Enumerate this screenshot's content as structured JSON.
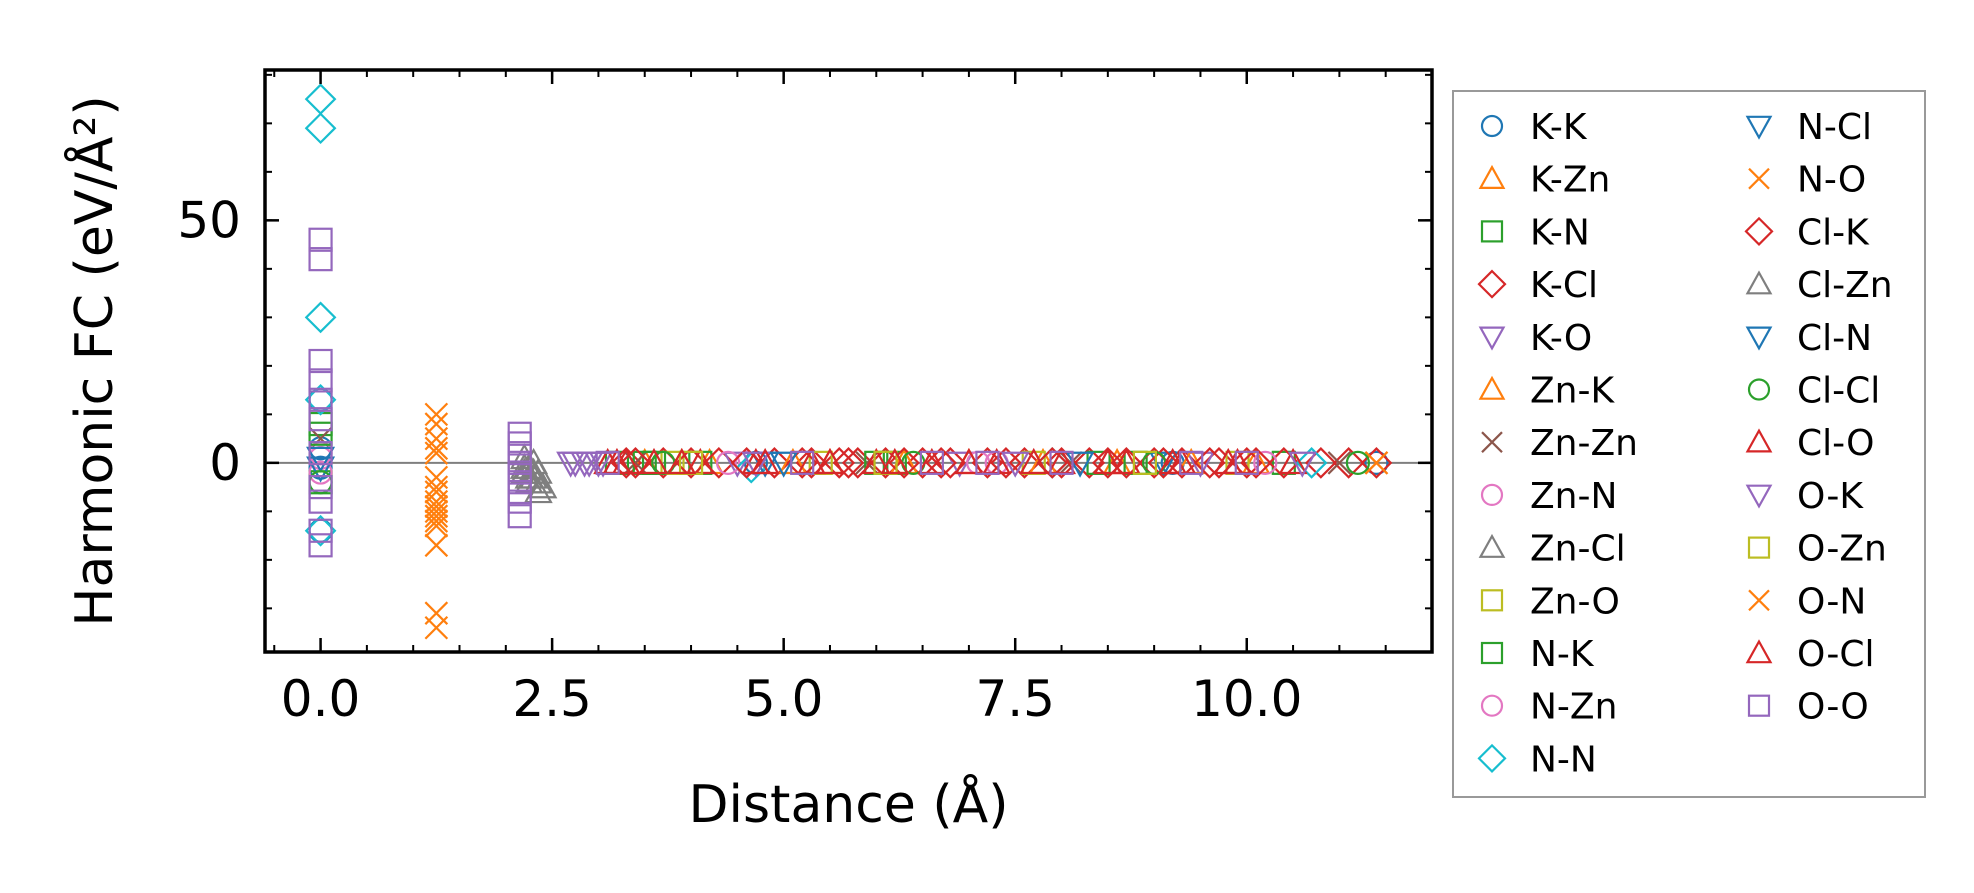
{
  "chart_data": {
    "type": "scatter",
    "title": "",
    "xlabel": "Distance (Å)",
    "ylabel": "Harmonic FC (eV/Å²)",
    "xlim": [
      -0.6,
      12.0
    ],
    "ylim": [
      -39,
      81
    ],
    "xticks": [
      {
        "value": 0.0,
        "label": "0.0"
      },
      {
        "value": 2.5,
        "label": "2.5"
      },
      {
        "value": 5.0,
        "label": "5.0"
      },
      {
        "value": 7.5,
        "label": "7.5"
      },
      {
        "value": 10.0,
        "label": "10.0"
      }
    ],
    "yticks": [
      {
        "value": 0,
        "label": "0"
      },
      {
        "value": 50,
        "label": "50"
      }
    ],
    "zero_line": true,
    "grid": false,
    "legend_position": "outside-right",
    "series": [
      {
        "name": "K-K",
        "marker": "circle",
        "color": "#1f77b4",
        "x": [
          0,
          0,
          0,
          0,
          4.7,
          9.2,
          11.4
        ],
        "y": [
          13,
          3,
          -1,
          -14,
          0,
          0,
          0
        ]
      },
      {
        "name": "K-Zn",
        "marker": "triangle-up",
        "color": "#ff7f0e",
        "x": [
          3.5,
          4.2,
          5.5,
          7.0,
          8.6,
          10.1
        ],
        "y": [
          0,
          0,
          0,
          0,
          0,
          0
        ]
      },
      {
        "name": "K-N",
        "marker": "square",
        "color": "#2ca02c",
        "x": [
          0,
          0,
          3.2,
          3.6,
          4.1,
          6.2,
          8.8,
          10.4
        ],
        "y": [
          8,
          -4,
          0,
          0,
          0,
          0,
          0,
          0
        ]
      },
      {
        "name": "K-Cl",
        "marker": "diamond",
        "color": "#d62728",
        "x": [
          3.3,
          3.7,
          4.3,
          4.9,
          5.3,
          5.6,
          5.8,
          6.1,
          6.5,
          6.8,
          7.2,
          7.6,
          8.0,
          8.3,
          8.7,
          9.0,
          9.3,
          9.7,
          10.0,
          10.4,
          10.8,
          11.1,
          11.4
        ],
        "y": [
          0,
          0,
          0,
          0,
          0,
          0,
          0,
          0,
          0,
          0,
          0,
          0,
          0,
          0,
          0,
          0,
          0,
          0,
          0,
          0,
          0,
          0,
          0
        ]
      },
      {
        "name": "K-O",
        "marker": "triangle-down",
        "color": "#9467bd",
        "x": [
          2.7,
          2.85,
          3.0,
          4.5,
          6.9,
          9.5
        ],
        "y": [
          0,
          0,
          0,
          0,
          0,
          0
        ]
      },
      {
        "name": "Zn-K",
        "marker": "triangle-up",
        "color": "#ff7f0e",
        "x": [
          3.9,
          5.1,
          6.3,
          7.8,
          9.4
        ],
        "y": [
          0,
          0,
          0,
          0,
          0
        ]
      },
      {
        "name": "Zn-Zn",
        "marker": "x",
        "color": "#8c564b",
        "x": [
          0,
          3.4,
          5.9,
          8.1,
          11.0
        ],
        "y": [
          5,
          0,
          0,
          0,
          0
        ]
      },
      {
        "name": "Zn-N",
        "marker": "circle",
        "color": "#e377c2",
        "x": [
          0,
          0,
          4.4,
          7.3,
          10.2
        ],
        "y": [
          2,
          -2,
          0,
          0,
          0
        ]
      },
      {
        "name": "Zn-Cl",
        "marker": "triangle-up",
        "color": "#7f7f7f",
        "x": [
          2.2,
          2.2,
          2.25,
          2.25,
          2.3,
          2.3,
          2.35,
          2.35,
          2.4
        ],
        "y": [
          -2,
          1,
          -4,
          -1,
          -3,
          0,
          -6,
          -2,
          -5
        ]
      },
      {
        "name": "Zn-O",
        "marker": "square",
        "color": "#bcbd22",
        "x": [
          3.8,
          5.4,
          7.7,
          9.9
        ],
        "y": [
          0,
          0,
          0,
          0
        ]
      },
      {
        "name": "N-K",
        "marker": "square",
        "color": "#2ca02c",
        "x": [
          0,
          3.5,
          6.0,
          8.4
        ],
        "y": [
          6,
          0,
          0,
          0
        ]
      },
      {
        "name": "N-Zn",
        "marker": "circle",
        "color": "#e377c2",
        "x": [
          0,
          4.6,
          7.1
        ],
        "y": [
          1,
          0,
          0
        ]
      },
      {
        "name": "N-N",
        "marker": "diamond",
        "color": "#17becf",
        "x": [
          0,
          0,
          0,
          0,
          0,
          4.65,
          7.9,
          10.7
        ],
        "y": [
          75,
          69,
          30,
          13,
          -14,
          -1,
          0,
          0
        ]
      },
      {
        "name": "N-Cl",
        "marker": "triangle-down",
        "color": "#1f77b4",
        "x": [
          0,
          4.8,
          9.1
        ],
        "y": [
          -1,
          0,
          0
        ]
      },
      {
        "name": "N-O",
        "marker": "x",
        "color": "#ff7f0e",
        "x": [
          1.25,
          1.25,
          1.25,
          1.25,
          1.25,
          1.25,
          1.25,
          1.25,
          1.25,
          1.25,
          1.25,
          1.25,
          1.25,
          1.25,
          11.4
        ],
        "y": [
          10,
          8,
          5,
          3,
          -3,
          -5,
          -8,
          -9,
          -10,
          -11,
          -13,
          -17,
          -31,
          -34,
          0
        ]
      },
      {
        "name": "Cl-K",
        "marker": "diamond",
        "color": "#d62728",
        "x": [
          3.4,
          4.0,
          4.6,
          5.2,
          5.7,
          6.3,
          6.7,
          7.4,
          7.9,
          8.5,
          9.1,
          9.6,
          10.1
        ],
        "y": [
          0,
          0,
          0,
          0,
          0,
          0,
          0,
          0,
          0,
          0,
          0,
          0,
          0
        ]
      },
      {
        "name": "Cl-Zn",
        "marker": "triangle-up",
        "color": "#7f7f7f",
        "x": [
          2.2,
          2.25,
          2.3,
          2.35
        ],
        "y": [
          -1,
          -3,
          -2,
          -4
        ]
      },
      {
        "name": "Cl-N",
        "marker": "triangle-down",
        "color": "#1f77b4",
        "x": [
          0,
          5.0,
          8.2
        ],
        "y": [
          1,
          0,
          0
        ]
      },
      {
        "name": "Cl-Cl",
        "marker": "circle",
        "color": "#2ca02c",
        "x": [
          0,
          3.7,
          6.4,
          9.0,
          11.2
        ],
        "y": [
          -4,
          0,
          0,
          0,
          0
        ]
      },
      {
        "name": "Cl-O",
        "marker": "triangle-up",
        "color": "#d62728",
        "x": [
          3.1,
          3.3,
          3.6,
          4.1,
          4.7,
          5.3,
          6.0,
          6.6,
          7.3,
          8.0,
          8.7,
          9.3,
          9.9,
          10.5
        ],
        "y": [
          0,
          0,
          0,
          0,
          0,
          0,
          0,
          0,
          0,
          0,
          0,
          0,
          0,
          0
        ]
      },
      {
        "name": "O-K",
        "marker": "triangle-down",
        "color": "#9467bd",
        "x": [
          2.75,
          2.9,
          3.05,
          4.7,
          7.5,
          10.6
        ],
        "y": [
          0,
          0,
          0,
          0,
          0,
          0
        ]
      },
      {
        "name": "O-Zn",
        "marker": "square",
        "color": "#bcbd22",
        "x": [
          4.0,
          6.1,
          8.9
        ],
        "y": [
          0,
          0,
          0
        ]
      },
      {
        "name": "O-N",
        "marker": "x",
        "color": "#ff7f0e",
        "x": [
          1.25,
          1.25,
          1.25,
          11.4
        ],
        "y": [
          2,
          -6,
          -12,
          0
        ]
      },
      {
        "name": "O-Cl",
        "marker": "triangle-up",
        "color": "#d62728",
        "x": [
          3.2,
          3.9,
          4.8,
          5.5,
          6.2,
          7.0,
          7.7,
          8.5,
          9.2,
          9.8
        ],
        "y": [
          0,
          0,
          0,
          0,
          0,
          0,
          0,
          0,
          0,
          0
        ]
      },
      {
        "name": "O-O",
        "marker": "square",
        "color": "#9467bd",
        "x": [
          0,
          0,
          0,
          0,
          0,
          0,
          0,
          0,
          0,
          0,
          0,
          2.15,
          2.15,
          2.15,
          2.15,
          2.15,
          2.15,
          2.15,
          2.15,
          2.15,
          3.1,
          5.2,
          6.6,
          7.2,
          8.0,
          9.4,
          10.0
        ],
        "y": [
          46,
          42,
          21,
          17,
          13,
          9,
          2,
          -5,
          -8,
          -14,
          -17,
          6,
          4,
          2,
          0,
          -2,
          -4,
          -6,
          -8,
          -11,
          0,
          0,
          0,
          0,
          0,
          0,
          0
        ]
      }
    ]
  }
}
